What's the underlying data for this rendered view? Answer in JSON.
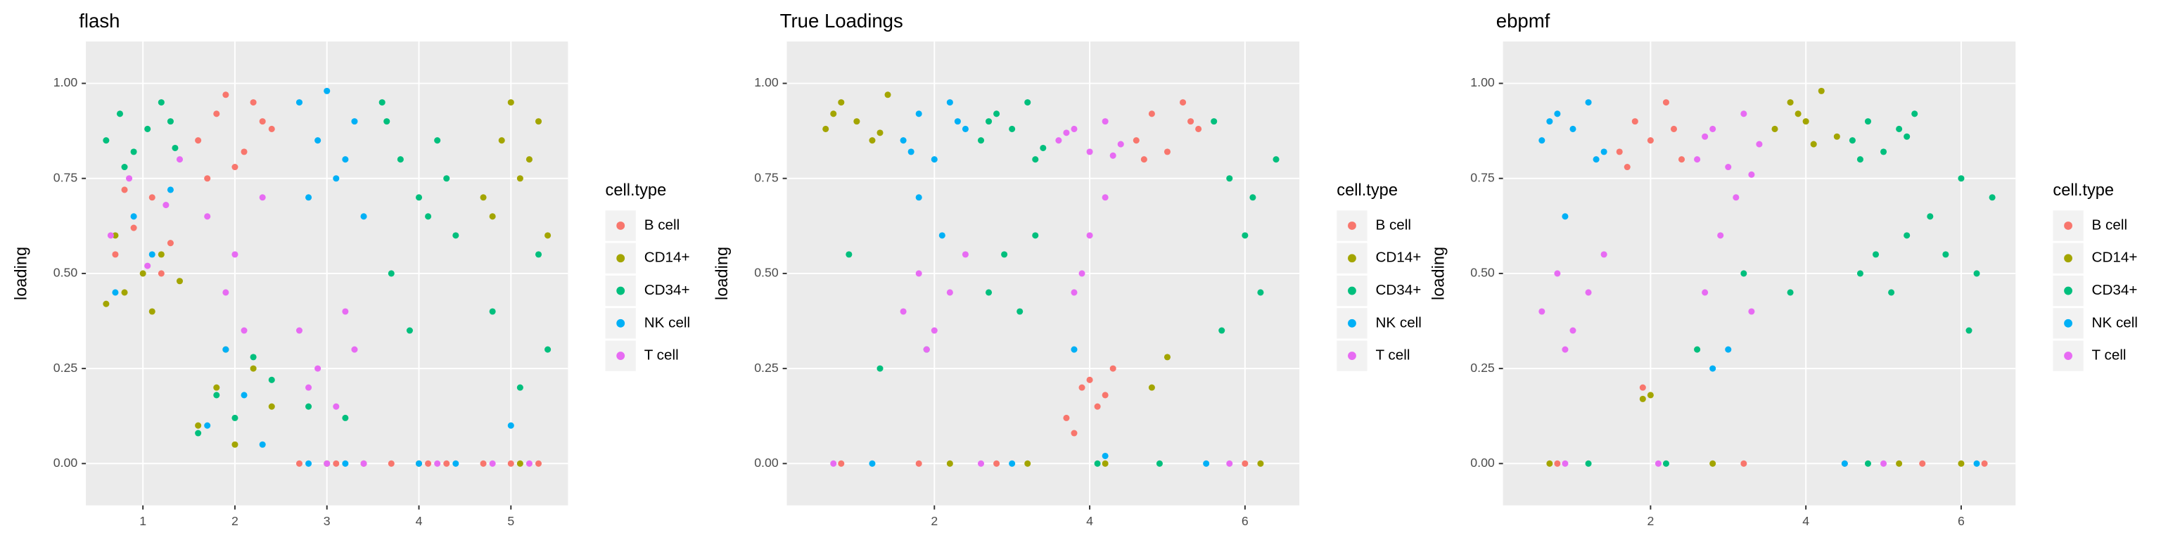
{
  "chart_data": [
    {
      "type": "scatter",
      "title": "flash",
      "ylabel": "loading",
      "legend_title": "cell.type",
      "grid": true,
      "xlim": [
        0.38,
        5.62
      ],
      "xticks": [
        1,
        2,
        3,
        4,
        5
      ],
      "ylim": [
        -0.11,
        1.11
      ],
      "yticks": [
        {
          "value": 0,
          "label": "0.00"
        },
        {
          "value": 0.25,
          "label": "0.25"
        },
        {
          "value": 0.5,
          "label": "0.50"
        },
        {
          "value": 0.75,
          "label": "0.75"
        },
        {
          "value": 1,
          "label": "1.00"
        }
      ],
      "series": [
        {
          "name": "B cell",
          "color": "#F8766D",
          "x": [
            0.7,
            0.9,
            1.1,
            1.3,
            0.8,
            1.2,
            1.6,
            1.8,
            2.0,
            2.2,
            2.4,
            1.7,
            1.9,
            2.1,
            2.3,
            2.7,
            3.1,
            3.4,
            3.7,
            4.1,
            4.3,
            4.7,
            5.0,
            5.3
          ],
          "values": [
            0.55,
            0.62,
            0.7,
            0.58,
            0.72,
            0.5,
            0.85,
            0.92,
            0.78,
            0.95,
            0.88,
            0.75,
            0.97,
            0.82,
            0.9,
            0,
            0,
            0,
            0,
            0,
            0,
            0,
            0,
            0
          ]
        },
        {
          "name": "CD14+",
          "color": "#A3A500",
          "x": [
            0.6,
            0.8,
            1.0,
            1.2,
            1.4,
            0.7,
            1.1,
            1.6,
            1.8,
            2.0,
            2.2,
            2.4,
            1.9,
            4.9,
            5.1,
            5.3,
            4.8,
            5.2,
            5.0,
            4.7,
            5.4,
            3.0,
            4.0,
            5.1
          ],
          "values": [
            0.42,
            0.45,
            0.5,
            0.55,
            0.48,
            0.6,
            0.4,
            0.1,
            0.2,
            0.05,
            0.25,
            0.15,
            0.3,
            0.85,
            0.75,
            0.9,
            0.65,
            0.8,
            0.95,
            0.7,
            0.6,
            0,
            0,
            0
          ]
        },
        {
          "name": "CD34+",
          "color": "#00BF7D",
          "x": [
            0.6,
            0.75,
            0.9,
            1.05,
            1.2,
            1.35,
            0.8,
            1.3,
            1.6,
            1.8,
            2.0,
            2.2,
            2.4,
            2.8,
            3.2,
            3.6,
            3.8,
            4.0,
            4.2,
            4.4,
            3.7,
            3.9,
            4.1,
            4.3,
            3.65,
            4.8,
            5.1,
            5.4,
            5.3
          ],
          "values": [
            0.85,
            0.92,
            0.82,
            0.88,
            0.95,
            0.83,
            0.78,
            0.9,
            0.08,
            0.18,
            0.12,
            0.28,
            0.22,
            0.15,
            0.12,
            0.95,
            0.8,
            0.7,
            0.85,
            0.6,
            0.5,
            0.35,
            0.65,
            0.75,
            0.9,
            0.4,
            0.2,
            0.3,
            0.55
          ]
        },
        {
          "name": "NK cell",
          "color": "#00B0F6",
          "x": [
            0.7,
            0.9,
            1.1,
            1.3,
            1.7,
            1.9,
            2.1,
            2.3,
            2.7,
            2.9,
            3.1,
            3.3,
            3.4,
            2.8,
            3.0,
            3.2,
            2.8,
            3.2,
            4.0,
            4.4,
            5.0
          ],
          "values": [
            0.45,
            0.65,
            0.55,
            0.72,
            0.1,
            0.3,
            0.18,
            0.05,
            0.95,
            0.85,
            0.75,
            0.9,
            0.65,
            0.7,
            0.98,
            0.8,
            0,
            0,
            0,
            0,
            0.1
          ]
        },
        {
          "name": "T cell",
          "color": "#E76BF3",
          "x": [
            0.65,
            0.85,
            1.05,
            1.25,
            1.4,
            1.7,
            1.9,
            2.1,
            2.3,
            2.0,
            2.7,
            2.9,
            3.1,
            3.3,
            2.8,
            3.2,
            3.0,
            3.4,
            4.2,
            4.8,
            5.2
          ],
          "values": [
            0.6,
            0.75,
            0.52,
            0.68,
            0.8,
            0.65,
            0.45,
            0.35,
            0.7,
            0.55,
            0.35,
            0.25,
            0.15,
            0.3,
            0.2,
            0.4,
            0,
            0,
            0,
            0,
            0
          ]
        }
      ]
    },
    {
      "type": "scatter",
      "title": "True Loadings",
      "ylabel": "loading",
      "legend_title": "cell.type",
      "grid": true,
      "xlim": [
        0.1,
        6.7
      ],
      "xticks": [
        2,
        4,
        6
      ],
      "ylim": [
        -0.11,
        1.11
      ],
      "yticks": [
        {
          "value": 0,
          "label": "0.00"
        },
        {
          "value": 0.25,
          "label": "0.25"
        },
        {
          "value": 0.5,
          "label": "0.50"
        },
        {
          "value": 0.75,
          "label": "0.75"
        },
        {
          "value": 1,
          "label": "1.00"
        }
      ],
      "series": [
        {
          "name": "B cell",
          "color": "#F8766D",
          "x": [
            3.7,
            3.9,
            4.1,
            4.3,
            3.8,
            4.2,
            4.0,
            4.6,
            4.8,
            5.0,
            5.2,
            5.4,
            4.7,
            5.3,
            0.8,
            1.8,
            2.8,
            6.0
          ],
          "values": [
            0.12,
            0.2,
            0.15,
            0.25,
            0.08,
            0.18,
            0.22,
            0.85,
            0.92,
            0.82,
            0.95,
            0.88,
            0.8,
            0.9,
            0,
            0,
            0,
            0
          ]
        },
        {
          "name": "CD14+",
          "color": "#A3A500",
          "x": [
            0.6,
            0.8,
            1.0,
            1.2,
            1.4,
            0.7,
            1.3,
            4.8,
            5.0,
            2.2,
            3.2,
            4.2,
            6.2
          ],
          "values": [
            0.88,
            0.95,
            0.9,
            0.85,
            0.97,
            0.92,
            0.87,
            0.2,
            0.28,
            0,
            0,
            0,
            0
          ]
        },
        {
          "name": "CD34+",
          "color": "#00BF7D",
          "x": [
            2.6,
            2.8,
            3.0,
            3.2,
            3.4,
            2.7,
            3.3,
            2.7,
            2.9,
            3.1,
            3.3,
            5.6,
            5.8,
            6.0,
            6.2,
            6.4,
            5.7,
            6.1,
            0.9,
            1.3,
            1.9,
            4.1,
            4.9
          ],
          "values": [
            0.85,
            0.92,
            0.88,
            0.95,
            0.83,
            0.9,
            0.8,
            0.45,
            0.55,
            0.4,
            0.6,
            0.9,
            0.75,
            0.6,
            0.45,
            0.8,
            0.35,
            0.7,
            0.55,
            0.25,
            0.3,
            0,
            0
          ]
        },
        {
          "name": "NK cell",
          "color": "#00B0F6",
          "x": [
            1.6,
            1.8,
            2.0,
            2.2,
            2.4,
            1.7,
            2.3,
            1.8,
            2.1,
            3.8,
            4.2,
            1.2,
            3.0,
            5.5
          ],
          "values": [
            0.85,
            0.92,
            0.8,
            0.95,
            0.88,
            0.82,
            0.9,
            0.7,
            0.6,
            0.3,
            0.02,
            0,
            0,
            0
          ]
        },
        {
          "name": "T cell",
          "color": "#E76BF3",
          "x": [
            1.6,
            1.8,
            2.0,
            2.2,
            2.4,
            1.9,
            3.6,
            3.8,
            4.0,
            4.2,
            4.4,
            3.7,
            4.3,
            3.8,
            4.0,
            4.2,
            3.9,
            0.7,
            2.6,
            5.8
          ],
          "values": [
            0.4,
            0.5,
            0.35,
            0.45,
            0.55,
            0.3,
            0.85,
            0.88,
            0.82,
            0.9,
            0.84,
            0.87,
            0.81,
            0.45,
            0.6,
            0.7,
            0.5,
            0,
            0,
            0
          ]
        }
      ]
    },
    {
      "type": "scatter",
      "title": "ebpmf",
      "ylabel": "loading",
      "legend_title": "cell.type",
      "grid": true,
      "xlim": [
        0.1,
        6.7
      ],
      "xticks": [
        2,
        4,
        6
      ],
      "ylim": [
        -0.11,
        1.11
      ],
      "yticks": [
        {
          "value": 0,
          "label": "0.00"
        },
        {
          "value": 0.25,
          "label": "0.25"
        },
        {
          "value": 0.5,
          "label": "0.50"
        },
        {
          "value": 0.75,
          "label": "0.75"
        },
        {
          "value": 1,
          "label": "1.00"
        }
      ],
      "series": [
        {
          "name": "B cell",
          "color": "#F8766D",
          "x": [
            1.6,
            1.8,
            2.0,
            2.2,
            2.4,
            1.7,
            2.3,
            1.9,
            0.8,
            3.2,
            4.5,
            5.5,
            6.3
          ],
          "values": [
            0.82,
            0.9,
            0.85,
            0.95,
            0.8,
            0.78,
            0.88,
            0.2,
            0,
            0,
            0,
            0,
            0
          ]
        },
        {
          "name": "CD14+",
          "color": "#A3A500",
          "x": [
            3.6,
            3.8,
            4.0,
            4.2,
            4.4,
            3.9,
            4.1,
            1.9,
            2.0,
            0.7,
            2.8,
            5.2,
            6.0
          ],
          "values": [
            0.88,
            0.95,
            0.9,
            0.98,
            0.86,
            0.92,
            0.84,
            0.17,
            0.18,
            0,
            0,
            0,
            0
          ]
        },
        {
          "name": "CD34+",
          "color": "#00BF7D",
          "x": [
            4.6,
            4.8,
            5.0,
            5.2,
            5.4,
            4.7,
            5.3,
            4.7,
            4.9,
            5.1,
            5.3,
            5.6,
            5.8,
            6.0,
            6.2,
            6.4,
            6.1,
            2.6,
            3.2,
            3.8,
            1.2,
            2.2,
            4.8
          ],
          "values": [
            0.85,
            0.9,
            0.82,
            0.88,
            0.92,
            0.8,
            0.86,
            0.5,
            0.55,
            0.45,
            0.6,
            0.65,
            0.55,
            0.75,
            0.5,
            0.7,
            0.35,
            0.3,
            0.5,
            0.45,
            0,
            0,
            0
          ]
        },
        {
          "name": "NK cell",
          "color": "#00B0F6",
          "x": [
            0.6,
            0.8,
            1.0,
            1.2,
            1.4,
            0.7,
            1.3,
            0.9,
            3.0,
            2.8,
            4.5,
            6.2
          ],
          "values": [
            0.85,
            0.92,
            0.88,
            0.95,
            0.82,
            0.9,
            0.8,
            0.65,
            0.3,
            0.25,
            0,
            0
          ]
        },
        {
          "name": "T cell",
          "color": "#E76BF3",
          "x": [
            0.6,
            0.8,
            1.0,
            1.2,
            1.4,
            0.9,
            2.6,
            2.8,
            3.0,
            3.2,
            3.4,
            2.7,
            3.3,
            2.7,
            2.9,
            3.1,
            3.3,
            0.9,
            2.1,
            5.0
          ],
          "values": [
            0.4,
            0.5,
            0.35,
            0.45,
            0.55,
            0.3,
            0.8,
            0.88,
            0.78,
            0.92,
            0.84,
            0.86,
            0.76,
            0.45,
            0.6,
            0.7,
            0.4,
            0,
            0,
            0
          ]
        }
      ]
    }
  ]
}
